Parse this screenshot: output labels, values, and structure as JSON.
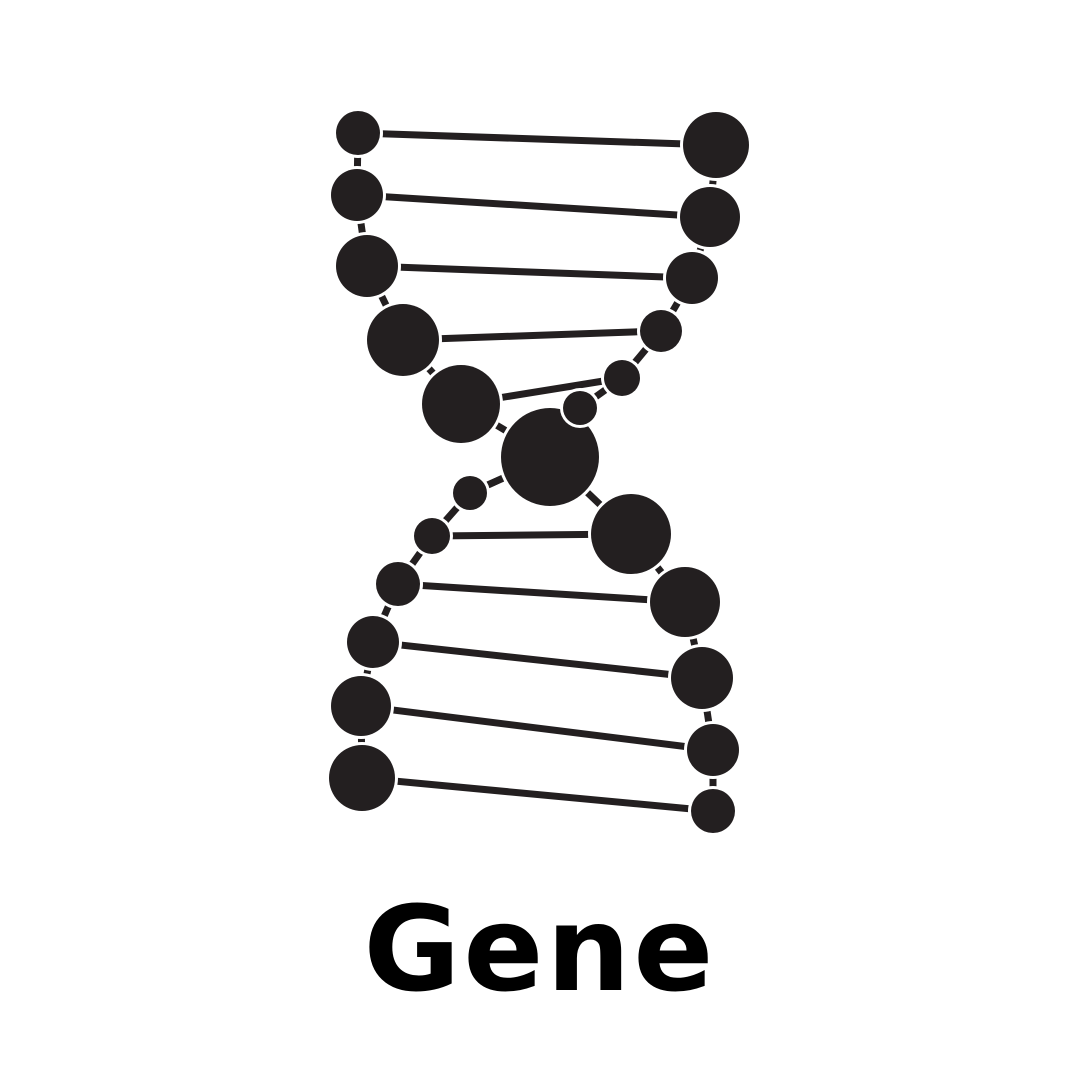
{
  "caption": "Gene",
  "colors": {
    "ink": "#231f20",
    "caption": "#000000",
    "background": "#ffffff"
  },
  "icon": "dna-double-helix-icon"
}
